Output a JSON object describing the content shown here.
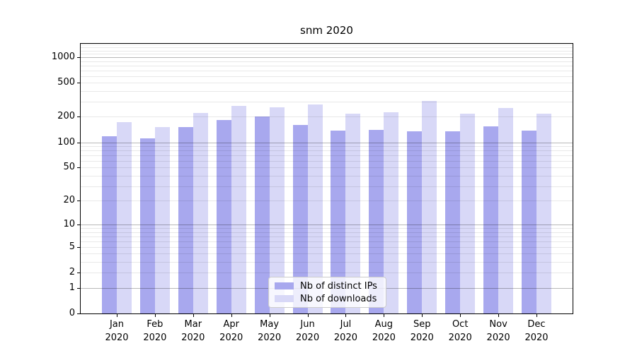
{
  "title": "snm 2020",
  "chart_data": {
    "type": "bar",
    "title": "snm 2020",
    "xlabel": "",
    "ylabel": "",
    "y_scale": "log1p",
    "ylim": [
      0,
      1440
    ],
    "grid": true,
    "legend_position": "lower center",
    "categories": [
      "Jan 2020",
      "Feb 2020",
      "Mar 2020",
      "Apr 2020",
      "May 2020",
      "Jun 2020",
      "Jul 2020",
      "Aug 2020",
      "Sep 2020",
      "Oct 2020",
      "Nov 2020",
      "Dec 2020"
    ],
    "series": [
      {
        "name": "Nb of distinct IPs",
        "color": "#a8a8ee",
        "values": [
          119,
          112,
          151,
          184,
          200,
          160,
          138,
          141,
          136,
          136,
          154,
          137
        ]
      },
      {
        "name": "Nb of downloads",
        "color": "#d8d8f7",
        "values": [
          172,
          150,
          223,
          268,
          261,
          277,
          218,
          227,
          305,
          218,
          252,
          216
        ]
      }
    ],
    "ytick_values": [
      0,
      1,
      2,
      5,
      10,
      20,
      50,
      100,
      200,
      500,
      1000
    ],
    "ytick_labels": [
      "0",
      "1",
      "2",
      "5",
      "10",
      "20",
      "50",
      "100",
      "200",
      "500",
      "1000"
    ],
    "grid_major": [
      1,
      10,
      100,
      1000
    ],
    "grid_minor": [
      2,
      3,
      4,
      5,
      6,
      7,
      8,
      9,
      20,
      30,
      40,
      50,
      60,
      70,
      80,
      90,
      200,
      300,
      400,
      500,
      600,
      700,
      800,
      900,
      1100,
      1200,
      1300,
      1400
    ]
  },
  "legend": {
    "items": [
      "Nb of distinct IPs",
      "Nb of downloads"
    ]
  },
  "colors": {
    "major_grid": "#b0b0b0",
    "minor_grid": "#e8e8e8",
    "spine": "#000000",
    "text": "#000000"
  }
}
